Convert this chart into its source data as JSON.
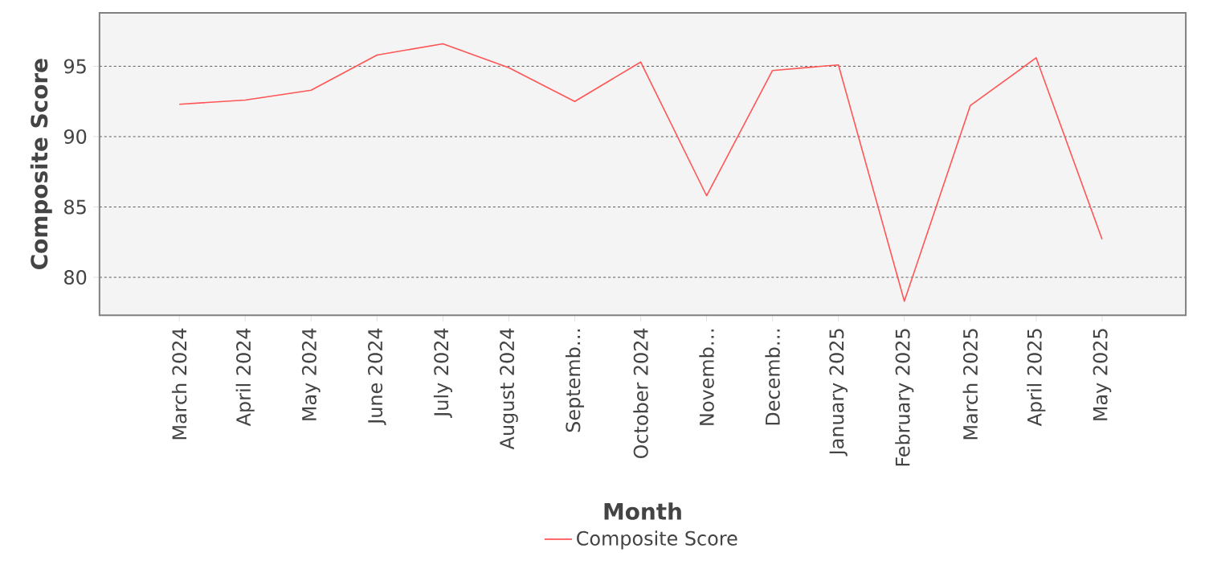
{
  "chart_data": {
    "type": "line",
    "xlabel": "Month",
    "ylabel": "Composite Score",
    "categories": [
      "March 2024",
      "April 2024",
      "May 2024",
      "June 2024",
      "July 2024",
      "August 2024",
      "Septemb…",
      "October 2024",
      "Novemb…",
      "Decemb…",
      "January 2025",
      "February 2025",
      "March 2025",
      "April 2025",
      "May 2025"
    ],
    "series": [
      {
        "name": "Composite Score",
        "color": "#ff5555",
        "values": [
          92.3,
          92.6,
          93.3,
          95.8,
          96.6,
          94.9,
          92.5,
          95.3,
          85.8,
          94.7,
          95.1,
          78.3,
          92.2,
          95.6,
          82.7
        ]
      }
    ],
    "ylim": [
      77.3,
      98.8
    ],
    "yticks": [
      80,
      85,
      90,
      95
    ],
    "grid": "y",
    "legend": "bottom",
    "marker": "none",
    "line_style": "solid"
  }
}
